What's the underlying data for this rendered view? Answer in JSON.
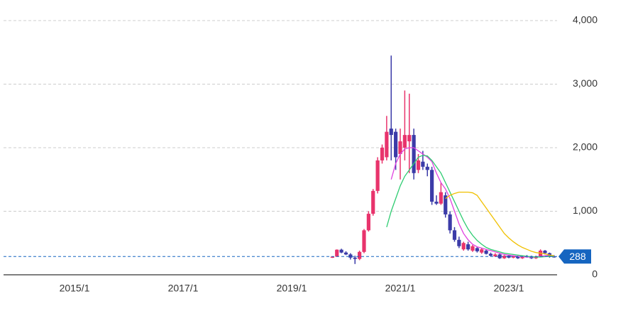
{
  "chart_data": {
    "type": "candlestick",
    "x": [
      "2019/10",
      "2019/11",
      "2019/12",
      "2020/1",
      "2020/2",
      "2020/3",
      "2020/4",
      "2020/5",
      "2020/6",
      "2020/7",
      "2020/8",
      "2020/9",
      "2020/10",
      "2020/11",
      "2020/12",
      "2021/1",
      "2021/2",
      "2021/3",
      "2021/4",
      "2021/5",
      "2021/6",
      "2021/7",
      "2021/8",
      "2021/9",
      "2021/10",
      "2021/11",
      "2021/12",
      "2022/1",
      "2022/2",
      "2022/3",
      "2022/4",
      "2022/5",
      "2022/6",
      "2022/7",
      "2022/8",
      "2022/9",
      "2022/10",
      "2022/11",
      "2022/12",
      "2023/1",
      "2023/2",
      "2023/3",
      "2023/4",
      "2023/5",
      "2023/6",
      "2023/7",
      "2023/8",
      "2023/9",
      "2023/10",
      "2023/11"
    ],
    "open": [
      270,
      285,
      395,
      350,
      320,
      270,
      250,
      360,
      700,
      960,
      1320,
      1800,
      1850,
      2300,
      2250,
      1900,
      2000,
      2100,
      2200,
      1650,
      1780,
      1700,
      1650,
      1150,
      1120,
      1250,
      950,
      700,
      550,
      400,
      480,
      380,
      420,
      350,
      380,
      330,
      290,
      320,
      260,
      300,
      270,
      290,
      260,
      290,
      280,
      260,
      290,
      380,
      340,
      290
    ],
    "high": [
      285,
      400,
      410,
      370,
      340,
      300,
      380,
      720,
      1000,
      1350,
      1850,
      2050,
      2500,
      3450,
      2300,
      2300,
      2900,
      2850,
      2300,
      1900,
      1950,
      1750,
      1700,
      1250,
      1450,
      1300,
      1000,
      750,
      600,
      520,
      520,
      470,
      440,
      420,
      400,
      350,
      340,
      330,
      310,
      310,
      300,
      300,
      300,
      310,
      300,
      300,
      400,
      390,
      350,
      310
    ],
    "low": [
      265,
      280,
      340,
      310,
      240,
      170,
      230,
      340,
      680,
      930,
      1280,
      1750,
      1800,
      1800,
      1650,
      1500,
      1800,
      1600,
      1500,
      1600,
      1650,
      1550,
      1100,
      1100,
      1100,
      900,
      650,
      520,
      420,
      380,
      380,
      360,
      350,
      330,
      320,
      290,
      280,
      250,
      250,
      260,
      260,
      250,
      250,
      270,
      250,
      250,
      280,
      320,
      270,
      270
    ],
    "close": [
      285,
      395,
      350,
      320,
      270,
      250,
      360,
      700,
      960,
      1320,
      1800,
      2000,
      2250,
      2200,
      1850,
      2100,
      2200,
      2200,
      1600,
      1800,
      1700,
      1650,
      1150,
      1120,
      1300,
      950,
      700,
      550,
      450,
      500,
      400,
      450,
      370,
      400,
      330,
      300,
      320,
      260,
      300,
      270,
      290,
      260,
      290,
      280,
      260,
      290,
      380,
      340,
      290,
      288
    ],
    "up_color": "#e8336c",
    "down_color": "#3b3ba8",
    "series": [
      {
        "color": "#e040e0",
        "values": [
          null,
          null,
          null,
          null,
          null,
          null,
          null,
          null,
          null,
          null,
          null,
          null,
          null,
          1500,
          1750,
          1900,
          1980,
          2000,
          2000,
          1950,
          1900,
          1850,
          1780,
          1600,
          1450,
          1350,
          1200,
          1000,
          800,
          650,
          550,
          480,
          440,
          420,
          400,
          380,
          360,
          340,
          320,
          310,
          300,
          290,
          285,
          280,
          280,
          280,
          290,
          300,
          310,
          300
        ]
      },
      {
        "color": "#2ecc71",
        "values": [
          null,
          null,
          null,
          null,
          null,
          null,
          null,
          null,
          null,
          null,
          null,
          null,
          750,
          1000,
          1200,
          1400,
          1550,
          1650,
          1750,
          1850,
          1880,
          1870,
          1800,
          1700,
          1600,
          1450,
          1300,
          1150,
          1000,
          850,
          720,
          620,
          540,
          480,
          430,
          400,
          380,
          360,
          340,
          330,
          320,
          310,
          300,
          290,
          285,
          280,
          280,
          285,
          290,
          290
        ]
      },
      {
        "color": "#f0c000",
        "values": [
          null,
          null,
          null,
          null,
          null,
          null,
          null,
          null,
          null,
          null,
          null,
          null,
          null,
          null,
          null,
          null,
          null,
          null,
          null,
          null,
          null,
          null,
          null,
          null,
          null,
          1200,
          1250,
          1280,
          1300,
          1300,
          1300,
          1290,
          1250,
          1150,
          1050,
          950,
          850,
          750,
          650,
          580,
          520,
          470,
          430,
          400,
          370,
          350,
          340,
          330,
          310,
          300
        ]
      }
    ],
    "last_price": 288,
    "last_price_color": "#1565c0",
    "xticks": [
      "2015/1",
      "2017/1",
      "2019/1",
      "2021/1",
      "2023/1"
    ],
    "ylim": [
      0,
      4000
    ],
    "yticks": [
      0,
      {
        "value": 1000,
        "label": "1,000"
      },
      {
        "value": 2000,
        "label": "2,000"
      },
      {
        "value": 3000,
        "label": "3,000"
      },
      {
        "value": 4000,
        "label": "4,000"
      }
    ],
    "grid": true
  }
}
